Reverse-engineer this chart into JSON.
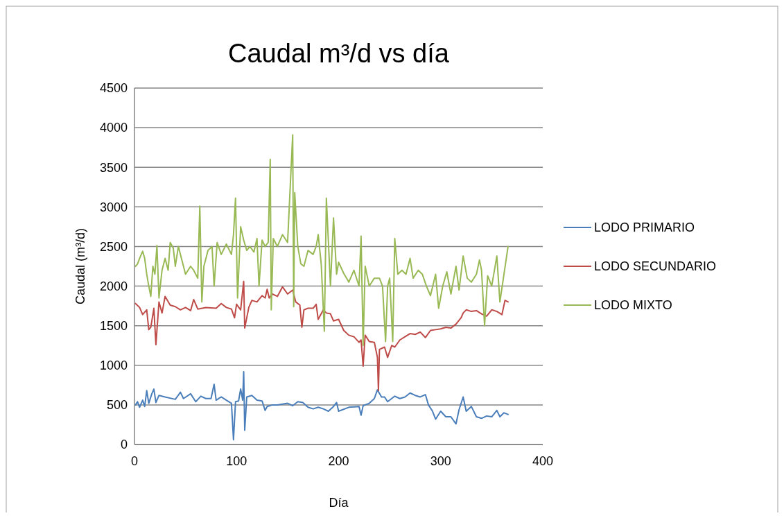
{
  "chart_data": {
    "type": "line",
    "title": "Caudal m³/d vs día",
    "xlabel": "Día",
    "ylabel": "Caudal  (m³/d)",
    "xlim": [
      0,
      400
    ],
    "xticks": [
      0,
      100,
      200,
      300,
      400
    ],
    "ylim": [
      0,
      4500
    ],
    "yticks": [
      0,
      500,
      1000,
      1500,
      2000,
      2500,
      3000,
      3500,
      4000,
      4500
    ],
    "grid": "y",
    "legend": "right",
    "marker": "none",
    "line_style": "solid",
    "series": [
      {
        "name": "LODO PRIMARIO",
        "color": "#4a7ebb",
        "x": [
          1,
          3,
          5,
          8,
          10,
          12,
          14,
          17,
          19,
          21,
          24,
          30,
          40,
          45,
          48,
          55,
          60,
          65,
          70,
          75,
          78,
          80,
          85,
          90,
          95,
          97,
          99,
          102,
          104,
          106,
          107,
          108,
          110,
          115,
          120,
          125,
          128,
          130,
          135,
          140,
          150,
          155,
          160,
          165,
          170,
          175,
          180,
          185,
          190,
          195,
          198,
          200,
          210,
          220,
          222,
          224,
          230,
          235,
          238,
          242,
          245,
          248,
          255,
          260,
          265,
          270,
          275,
          280,
          285,
          288,
          292,
          295,
          300,
          305,
          310,
          315,
          318,
          322,
          325,
          330,
          335,
          340,
          345,
          350,
          355,
          358,
          362,
          366
        ],
        "values": [
          500,
          540,
          470,
          560,
          480,
          680,
          520,
          640,
          700,
          530,
          620,
          600,
          570,
          660,
          580,
          640,
          540,
          610,
          580,
          580,
          760,
          560,
          600,
          560,
          520,
          60,
          540,
          550,
          700,
          560,
          920,
          180,
          600,
          620,
          560,
          550,
          430,
          480,
          500,
          500,
          520,
          490,
          540,
          530,
          470,
          450,
          470,
          450,
          420,
          480,
          530,
          420,
          470,
          480,
          370,
          490,
          520,
          580,
          690,
          600,
          600,
          540,
          610,
          580,
          600,
          650,
          620,
          600,
          630,
          500,
          420,
          320,
          420,
          350,
          350,
          260,
          440,
          600,
          420,
          480,
          350,
          330,
          360,
          350,
          430,
          350,
          400,
          380
        ]
      },
      {
        "name": "LODO SECUNDARIO",
        "color": "#be4b48",
        "x": [
          1,
          5,
          8,
          12,
          14,
          16,
          19,
          21,
          24,
          27,
          30,
          35,
          40,
          45,
          50,
          55,
          58,
          62,
          70,
          80,
          85,
          90,
          95,
          98,
          100,
          104,
          107,
          108,
          112,
          115,
          120,
          125,
          128,
          130,
          132,
          135,
          140,
          145,
          150,
          155,
          158,
          162,
          164,
          166,
          170,
          175,
          178,
          180,
          185,
          188,
          192,
          195,
          200,
          205,
          210,
          215,
          220,
          222,
          224,
          226,
          230,
          235,
          238,
          239,
          240,
          245,
          248,
          252,
          255,
          260,
          265,
          270,
          275,
          280,
          285,
          290,
          295,
          300,
          305,
          310,
          315,
          320,
          322,
          325,
          330,
          335,
          340,
          345,
          350,
          355,
          360,
          363,
          366
        ],
        "values": [
          1780,
          1730,
          1640,
          1700,
          1450,
          1480,
          1720,
          1260,
          1800,
          1660,
          1870,
          1760,
          1740,
          1700,
          1730,
          1690,
          1830,
          1710,
          1730,
          1720,
          1780,
          1730,
          1710,
          1600,
          1770,
          1700,
          2060,
          1470,
          1730,
          1820,
          1800,
          1880,
          1850,
          1960,
          1850,
          1900,
          1870,
          1990,
          1900,
          1950,
          1800,
          1760,
          1480,
          1700,
          1720,
          1720,
          1770,
          1580,
          1700,
          1660,
          1650,
          1560,
          1580,
          1440,
          1380,
          1360,
          1290,
          1320,
          990,
          1380,
          1300,
          1290,
          1100,
          680,
          1200,
          1230,
          1100,
          1250,
          1230,
          1320,
          1360,
          1400,
          1390,
          1420,
          1350,
          1440,
          1450,
          1460,
          1480,
          1470,
          1520,
          1600,
          1660,
          1700,
          1680,
          1690,
          1650,
          1620,
          1700,
          1680,
          1640,
          1820,
          1800
        ]
      },
      {
        "name": "LODO MIXTO",
        "color": "#98b954",
        "x": [
          1,
          3,
          5,
          8,
          10,
          12,
          14,
          16,
          18,
          20,
          22,
          24,
          27,
          30,
          33,
          35,
          38,
          40,
          43,
          46,
          50,
          55,
          58,
          62,
          64,
          66,
          68,
          72,
          76,
          78,
          81,
          85,
          90,
          95,
          97,
          99,
          101,
          104,
          107,
          110,
          113,
          117,
          120,
          122,
          125,
          128,
          131,
          133,
          134,
          136,
          140,
          145,
          150,
          155,
          156,
          157,
          160,
          163,
          166,
          170,
          175,
          178,
          180,
          183,
          186,
          188,
          192,
          195,
          198,
          200,
          205,
          210,
          215,
          220,
          222,
          224,
          226,
          230,
          235,
          240,
          243,
          246,
          248,
          250,
          253,
          255,
          258,
          262,
          266,
          270,
          273,
          278,
          282,
          286,
          290,
          295,
          298,
          302,
          306,
          310,
          315,
          318,
          322,
          326,
          330,
          335,
          338,
          340,
          343,
          346,
          350,
          355,
          358,
          362,
          366
        ],
        "values": [
          2250,
          2280,
          2350,
          2440,
          2350,
          2150,
          2000,
          1870,
          2250,
          2150,
          2510,
          1850,
          2200,
          2350,
          2200,
          2550,
          2480,
          2250,
          2500,
          2350,
          2150,
          2250,
          2200,
          2100,
          3010,
          1800,
          2250,
          2450,
          2500,
          2000,
          2550,
          2400,
          2530,
          2400,
          2650,
          3110,
          1850,
          2750,
          2580,
          2450,
          2500,
          2430,
          2600,
          2000,
          2580,
          2500,
          2550,
          3600,
          1700,
          2600,
          2500,
          2650,
          2550,
          3910,
          1740,
          3180,
          2500,
          2280,
          2250,
          2450,
          2400,
          2500,
          2650,
          2270,
          1430,
          3110,
          2000,
          2860,
          2150,
          2300,
          2160,
          2050,
          2200,
          2000,
          2630,
          1250,
          2250,
          2000,
          2100,
          2100,
          2000,
          1300,
          2000,
          2100,
          1300,
          2600,
          2150,
          2200,
          2150,
          2350,
          2100,
          2200,
          2150,
          2000,
          1880,
          2150,
          1720,
          2000,
          2180,
          1900,
          2250,
          1950,
          2380,
          2100,
          2050,
          2150,
          2330,
          2200,
          1500,
          2130,
          2000,
          2380,
          1800,
          2150,
          2500
        ]
      }
    ]
  }
}
